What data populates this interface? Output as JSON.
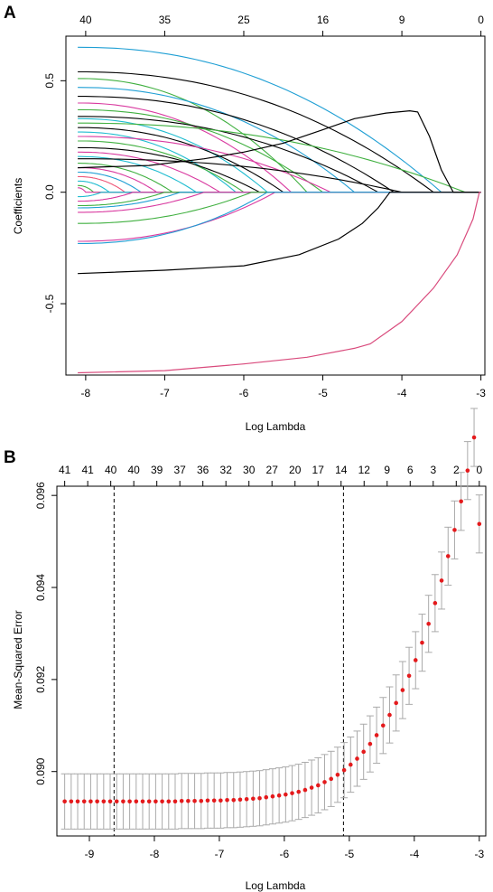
{
  "chart_data": [
    {
      "panel_label": "A",
      "type": "line",
      "title": "",
      "xlabel": "Log Lambda",
      "ylabel": "Coefficients",
      "xlim": [
        -8.25,
        -2.95
      ],
      "ylim": [
        -0.82,
        0.7
      ],
      "x_ticks": [
        "-8",
        "-7",
        "-6",
        "-5",
        "-4",
        "-3"
      ],
      "y_ticks": [
        "-0.5",
        "0.0",
        "0.5"
      ],
      "top_x": [
        -8,
        -7,
        -6,
        -5,
        -4,
        -3
      ],
      "top_ticks": [
        "40",
        "35",
        "25",
        "16",
        "9",
        "0"
      ],
      "grid": false,
      "series": [
        {
          "color": "#1f9fd4",
          "start": 0.65,
          "zero_at": -3.5
        },
        {
          "color": "#000000",
          "start": 0.54,
          "zero_at": -3.6
        },
        {
          "color": "#40b040",
          "start": 0.51,
          "zero_at": -5.2
        },
        {
          "color": "#1f9fd4",
          "start": 0.47,
          "zero_at": -4.6
        },
        {
          "color": "#000000",
          "start": 0.43,
          "zero_at": -4.1
        },
        {
          "color": "#d93aa0",
          "start": 0.4,
          "zero_at": -5.4
        },
        {
          "color": "#40b040",
          "start": 0.37,
          "zero_at": -5.0
        },
        {
          "color": "#000000",
          "start": 0.34,
          "zero_at": -4.3
        },
        {
          "color": "#1fbcd0",
          "start": 0.33,
          "zero_at": -5.7
        },
        {
          "color": "#40b040",
          "start": 0.31,
          "zero_at": -3.2
        },
        {
          "color": "#000000",
          "start": 0.29,
          "zero_at": -5.5
        },
        {
          "color": "#1fbcd0",
          "start": 0.27,
          "zero_at": -6.1
        },
        {
          "color": "#d93aa0",
          "start": 0.25,
          "zero_at": -4.9
        },
        {
          "color": "#40b040",
          "start": 0.23,
          "zero_at": -6.0
        },
        {
          "color": "#000000",
          "start": 0.2,
          "zero_at": -5.8
        },
        {
          "color": "#d93aa0",
          "start": 0.18,
          "zero_at": -6.3
        },
        {
          "color": "#1fbcd0",
          "start": 0.16,
          "zero_at": -6.6
        },
        {
          "color": "#000000",
          "start": 0.15,
          "zero_at": -4.0
        },
        {
          "color": "#40b040",
          "start": 0.13,
          "zero_at": -6.9
        },
        {
          "color": "#d93aa0",
          "start": 0.11,
          "zero_at": -7.1
        },
        {
          "color": "#1f9fd4",
          "start": 0.09,
          "zero_at": -7.3
        },
        {
          "color": "#ee5577",
          "start": 0.07,
          "zero_at": -7.5
        },
        {
          "color": "#1fbcd0",
          "start": 0.05,
          "zero_at": -7.7
        },
        {
          "color": "#40b040",
          "start": 0.03,
          "zero_at": -7.9
        },
        {
          "color": "#d93aa0",
          "start": 0.02,
          "zero_at": -8.0
        },
        {
          "color": "#1fbcd0",
          "start": -0.02,
          "zero_at": -7.8
        },
        {
          "color": "#d93aa0",
          "start": -0.04,
          "zero_at": -7.4
        },
        {
          "color": "#40b040",
          "start": -0.06,
          "zero_at": -7.0
        },
        {
          "color": "#1f9fd4",
          "start": -0.07,
          "zero_at": -6.8
        },
        {
          "color": "#d93aa0",
          "start": -0.09,
          "zero_at": -6.5
        },
        {
          "color": "#40b040",
          "start": -0.14,
          "zero_at": -5.9
        },
        {
          "color": "#d93aa0",
          "start": -0.22,
          "zero_at": -5.6
        },
        {
          "color": "#1f9fd4",
          "start": -0.23,
          "zero_at": -5.7
        }
      ],
      "special_series": [
        {
          "color": "#000000",
          "points": [
            [
              -8.1,
              0.11
            ],
            [
              -7.2,
              0.12
            ],
            [
              -6.5,
              0.15
            ],
            [
              -6.0,
              0.18
            ],
            [
              -5.5,
              0.22
            ],
            [
              -5.0,
              0.28
            ],
            [
              -4.6,
              0.33
            ],
            [
              -4.2,
              0.355
            ],
            [
              -3.9,
              0.365
            ],
            [
              -3.8,
              0.36
            ],
            [
              -3.65,
              0.25
            ],
            [
              -3.5,
              0.1
            ],
            [
              -3.35,
              0.0
            ]
          ]
        },
        {
          "color": "#000000",
          "points": [
            [
              -8.1,
              -0.365
            ],
            [
              -7.0,
              -0.35
            ],
            [
              -6.0,
              -0.33
            ],
            [
              -5.3,
              -0.28
            ],
            [
              -4.8,
              -0.21
            ],
            [
              -4.5,
              -0.14
            ],
            [
              -4.3,
              -0.07
            ],
            [
              -4.15,
              0.0
            ]
          ]
        },
        {
          "color": "#d94a7c",
          "points": [
            [
              -8.1,
              -0.81
            ],
            [
              -7.0,
              -0.8
            ],
            [
              -6.0,
              -0.77
            ],
            [
              -5.2,
              -0.74
            ],
            [
              -4.6,
              -0.7
            ],
            [
              -4.4,
              -0.68
            ],
            [
              -4.0,
              -0.58
            ],
            [
              -3.6,
              -0.43
            ],
            [
              -3.3,
              -0.28
            ],
            [
              -3.1,
              -0.12
            ],
            [
              -3.02,
              0.0
            ]
          ]
        }
      ]
    },
    {
      "panel_label": "B",
      "type": "scatter",
      "title": "",
      "xlabel": "Log Lambda",
      "ylabel": "Mean-Squared Error",
      "xlim": [
        -9.5,
        -2.9
      ],
      "ylim": [
        0.0886,
        0.0962
      ],
      "x_ticks": [
        "-9",
        "-8",
        "-7",
        "-6",
        "-5",
        "-4",
        "-3"
      ],
      "y_ticks": [
        "0.090",
        "0.092",
        "0.094",
        "0.096"
      ],
      "top_ticks": [
        "41",
        "41",
        "40",
        "40",
        "39",
        "37",
        "36",
        "32",
        "30",
        "27",
        "20",
        "17",
        "14",
        "12",
        "9",
        "6",
        "3",
        "2",
        "0"
      ],
      "grid": false,
      "vlines": [
        -8.62,
        -5.09
      ],
      "point_color": "#e41a1c",
      "errorbar_color": "#aaaaaa",
      "x": [
        -9.38,
        -9.28,
        -9.18,
        -9.08,
        -8.98,
        -8.88,
        -8.78,
        -8.68,
        -8.58,
        -8.48,
        -8.38,
        -8.28,
        -8.18,
        -8.08,
        -7.98,
        -7.88,
        -7.78,
        -7.68,
        -7.58,
        -7.48,
        -7.38,
        -7.28,
        -7.18,
        -7.08,
        -6.98,
        -6.88,
        -6.78,
        -6.68,
        -6.58,
        -6.48,
        -6.38,
        -6.28,
        -6.18,
        -6.08,
        -5.98,
        -5.88,
        -5.78,
        -5.68,
        -5.58,
        -5.48,
        -5.38,
        -5.28,
        -5.18,
        -5.08,
        -4.98,
        -4.88,
        -4.78,
        -4.68,
        -4.58,
        -4.48,
        -4.38,
        -4.28,
        -4.18,
        -4.08,
        -3.98,
        -3.88,
        -3.78,
        -3.68,
        -3.58,
        -3.48,
        -3.38,
        -3.28,
        -3.18,
        -3.08,
        -3.0
      ],
      "mse": [
        0.08935,
        0.08935,
        0.08935,
        0.08935,
        0.08935,
        0.08935,
        0.08935,
        0.08935,
        0.08935,
        0.08935,
        0.08935,
        0.08935,
        0.08935,
        0.08935,
        0.08935,
        0.08935,
        0.08935,
        0.08935,
        0.08936,
        0.08936,
        0.08936,
        0.08936,
        0.08937,
        0.08937,
        0.08937,
        0.08938,
        0.08938,
        0.08939,
        0.0894,
        0.08941,
        0.08942,
        0.08944,
        0.08946,
        0.08948,
        0.0895,
        0.08953,
        0.08956,
        0.0896,
        0.08965,
        0.0897,
        0.08977,
        0.08984,
        0.08993,
        0.09003,
        0.09015,
        0.09028,
        0.09043,
        0.0906,
        0.09079,
        0.091,
        0.09123,
        0.09149,
        0.09177,
        0.09208,
        0.09242,
        0.0928,
        0.09321,
        0.09366,
        0.09415,
        0.09468,
        0.09525,
        0.09587,
        0.09654,
        0.09726,
        0.09538
      ],
      "err": [
        0.0006,
        0.0006,
        0.0006,
        0.0006,
        0.0006,
        0.0006,
        0.0006,
        0.0006,
        0.0006,
        0.0006,
        0.0006,
        0.0006,
        0.0006,
        0.0006,
        0.0006,
        0.0006,
        0.0006,
        0.0006,
        0.0006,
        0.0006,
        0.0006,
        0.0006,
        0.0006,
        0.0006,
        0.0006,
        0.0006,
        0.0006,
        0.0006,
        0.0006,
        0.0006,
        0.0006,
        0.0006,
        0.0006,
        0.0006,
        0.0006,
        0.0006,
        0.0006,
        0.0006,
        0.0006,
        0.0006,
        0.0006,
        0.0006,
        0.0006,
        0.0006,
        0.0006,
        0.0006,
        0.0006,
        0.00061,
        0.00061,
        0.00061,
        0.00061,
        0.00061,
        0.00062,
        0.00062,
        0.00062,
        0.00062,
        0.00062,
        0.00062,
        0.00062,
        0.00063,
        0.00063,
        0.00063,
        0.00063,
        0.00063,
        0.00063
      ]
    }
  ]
}
